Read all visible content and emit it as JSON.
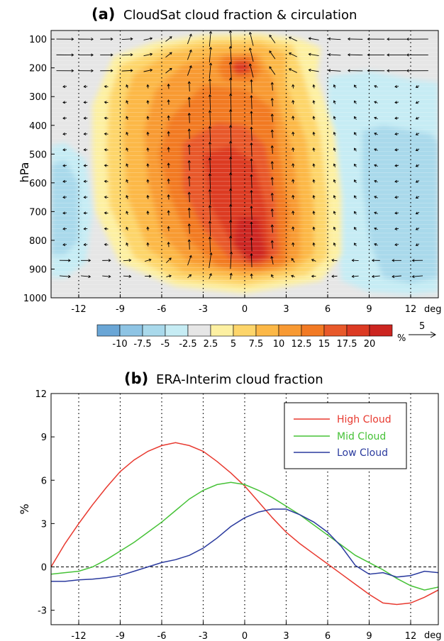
{
  "colors": {
    "high": "#e8392f",
    "mid": "#46c237",
    "low": "#2a3a9e",
    "contour": [
      "#6aa6d6",
      "#8ec4e4",
      "#a9d9eb",
      "#c6ecf4",
      "#e6e6e6",
      "#fdf0a2",
      "#fdd56a",
      "#fcb847",
      "#f89a33",
      "#f27a24",
      "#e8592a",
      "#dc3a23",
      "#cc2520"
    ]
  },
  "chart_data": [
    {
      "panel_label": "(a)",
      "title": "CloudSat cloud fraction & circulation",
      "type": "heatmap",
      "ylabel": "hPa",
      "x_unit": "deg",
      "xlim": [
        -14,
        14
      ],
      "ylim": [
        1000,
        70
      ],
      "x_ticks": [
        -12,
        -9,
        -6,
        -3,
        0,
        3,
        6,
        9,
        12
      ],
      "y_ticks": [
        100,
        200,
        300,
        400,
        500,
        600,
        700,
        800,
        900,
        1000
      ],
      "colorbar": {
        "labels": [
          "-10",
          "-7.5",
          "-5",
          "-2.5",
          "2.5",
          "5",
          "7.5",
          "10",
          "12.5",
          "15",
          "17.5",
          "20"
        ],
        "unit": "%"
      },
      "vector_reference": {
        "value": "5"
      },
      "cloud_cores": [
        {
          "x": -2.5,
          "p": 560,
          "peak": 17.5
        },
        {
          "x": 0.5,
          "p": 830,
          "peak": 20
        },
        {
          "x": -0.5,
          "p": 200,
          "peak": 15
        },
        {
          "x": -1.5,
          "p": 400,
          "peak": 12.5
        }
      ],
      "negative_regions": [
        {
          "x_range": [
            -14,
            -11
          ],
          "p_range": [
            470,
            920
          ],
          "level": -5
        },
        {
          "x_range": [
            6,
            14
          ],
          "p_range": [
            250,
            960
          ],
          "level": -5
        }
      ]
    },
    {
      "panel_label": "(b)",
      "title": "ERA-Interim cloud fraction",
      "type": "line",
      "ylabel": "%",
      "x_unit": "deg",
      "xlim": [
        -14,
        14
      ],
      "ylim": [
        -4,
        12
      ],
      "x_ticks": [
        -12,
        -9,
        -6,
        -3,
        0,
        3,
        6,
        9,
        12
      ],
      "y_ticks": [
        -3,
        0,
        3,
        6,
        9,
        12
      ],
      "legend_position": "top-right",
      "x": [
        -14,
        -13,
        -12,
        -11,
        -10,
        -9,
        -8,
        -7,
        -6,
        -5,
        -4,
        -3,
        -2,
        -1,
        0,
        1,
        2,
        3,
        4,
        5,
        6,
        7,
        8,
        9,
        10,
        11,
        12,
        13,
        14
      ],
      "series": [
        {
          "name": "High Cloud",
          "values": [
            0.0,
            1.6,
            3.0,
            4.3,
            5.5,
            6.6,
            7.4,
            8.0,
            8.4,
            8.6,
            8.4,
            8.0,
            7.3,
            6.5,
            5.6,
            4.5,
            3.4,
            2.4,
            1.6,
            0.9,
            0.2,
            -0.5,
            -1.2,
            -1.9,
            -2.5,
            -2.6,
            -2.5,
            -2.1,
            -1.6
          ]
        },
        {
          "name": "Mid Cloud",
          "values": [
            -0.5,
            -0.4,
            -0.3,
            0.0,
            0.5,
            1.1,
            1.7,
            2.4,
            3.1,
            3.9,
            4.7,
            5.3,
            5.7,
            5.85,
            5.7,
            5.3,
            4.8,
            4.2,
            3.6,
            2.9,
            2.2,
            1.5,
            0.8,
            0.3,
            -0.2,
            -0.8,
            -1.3,
            -1.6,
            -1.4
          ]
        },
        {
          "name": "Low Cloud",
          "values": [
            -1.0,
            -1.0,
            -0.9,
            -0.85,
            -0.75,
            -0.6,
            -0.3,
            0.0,
            0.3,
            0.5,
            0.8,
            1.3,
            2.0,
            2.8,
            3.4,
            3.8,
            4.0,
            4.0,
            3.6,
            3.1,
            2.4,
            1.4,
            0.1,
            -0.5,
            -0.4,
            -0.7,
            -0.6,
            -0.3,
            -0.4
          ]
        }
      ]
    }
  ]
}
